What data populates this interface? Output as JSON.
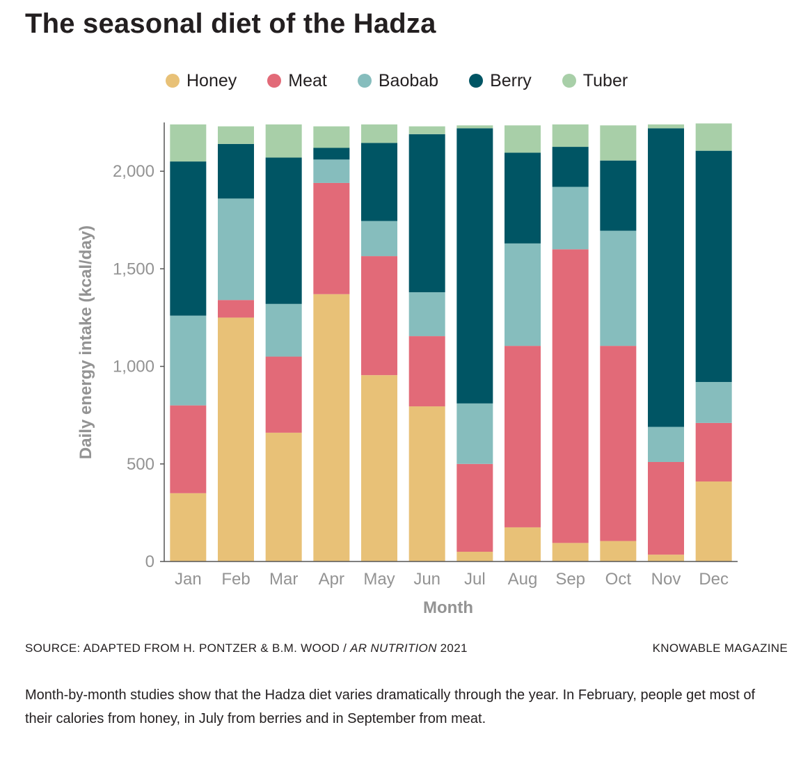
{
  "title": "The seasonal diet of the Hadza",
  "legend": [
    {
      "label": "Honey",
      "color": "#e8c177"
    },
    {
      "label": "Meat",
      "color": "#e26a78"
    },
    {
      "label": "Baobab",
      "color": "#86bdbd"
    },
    {
      "label": "Berry",
      "color": "#005564"
    },
    {
      "label": "Tuber",
      "color": "#a8cfa8"
    }
  ],
  "chart_data": {
    "type": "bar",
    "stacked": true,
    "title": "The seasonal diet of the Hadza",
    "xlabel": "Month",
    "ylabel": "Daily energy intake (kcal/day)",
    "ylim": [
      0,
      2250
    ],
    "yticks": [
      0,
      500,
      1000,
      1500,
      2000
    ],
    "ytick_labels": [
      "0",
      "500",
      "1,000",
      "1,500",
      "2,000"
    ],
    "categories": [
      "Jan",
      "Feb",
      "Mar",
      "Apr",
      "May",
      "Jun",
      "Jul",
      "Aug",
      "Sep",
      "Oct",
      "Nov",
      "Dec"
    ],
    "series": [
      {
        "name": "Honey",
        "color": "#e8c177",
        "values": [
          350,
          1250,
          660,
          1370,
          955,
          795,
          50,
          175,
          95,
          105,
          35,
          410
        ]
      },
      {
        "name": "Meat",
        "color": "#e26a78",
        "values": [
          450,
          90,
          390,
          570,
          610,
          360,
          450,
          930,
          1505,
          1000,
          475,
          300
        ]
      },
      {
        "name": "Baobab",
        "color": "#86bdbd",
        "values": [
          460,
          520,
          270,
          120,
          180,
          225,
          310,
          525,
          320,
          590,
          180,
          210
        ]
      },
      {
        "name": "Berry",
        "color": "#005564",
        "values": [
          790,
          280,
          750,
          60,
          400,
          810,
          1410,
          465,
          205,
          360,
          1530,
          1185
        ]
      },
      {
        "name": "Tuber",
        "color": "#a8cfa8",
        "values": [
          190,
          90,
          170,
          110,
          95,
          40,
          15,
          140,
          115,
          180,
          20,
          140
        ]
      }
    ]
  },
  "source": {
    "prefix": "SOURCE: ADAPTED FROM H. PONTZER & B.M. WOOD / ",
    "journal": "AR NUTRITION",
    "suffix": " 2021"
  },
  "publisher": "KNOWABLE MAGAZINE",
  "caption": "Month-by-month studies show that the Hadza diet varies dramatically through the year. In February, people get most of their calories from honey, in July from berries and in September from meat."
}
